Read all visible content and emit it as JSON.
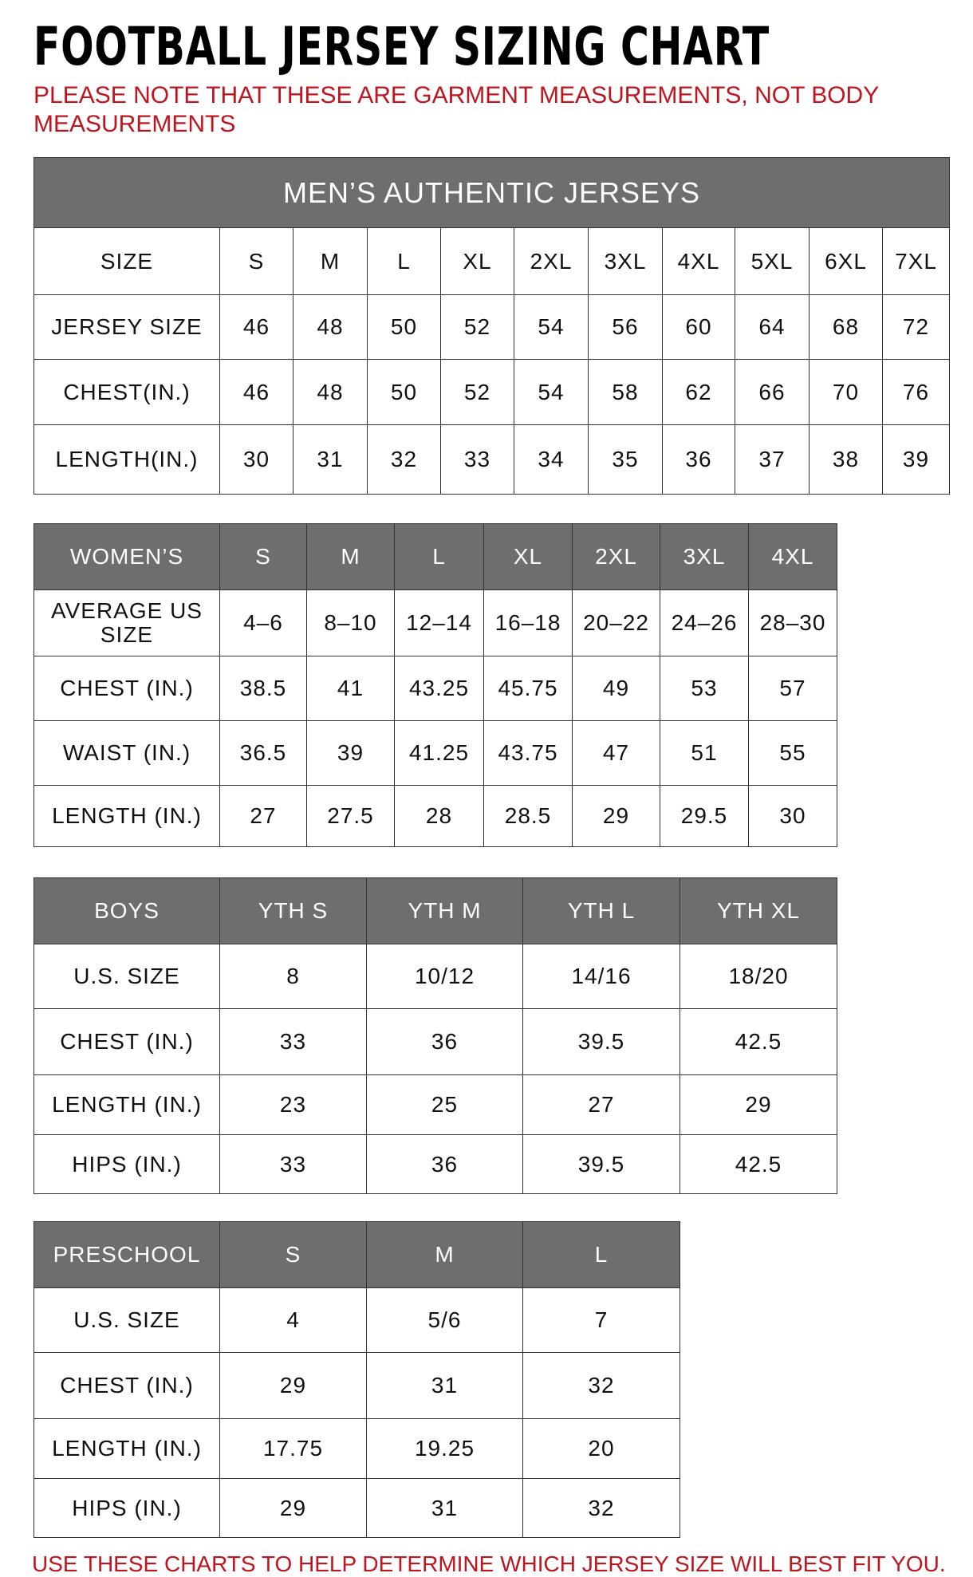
{
  "title": "FOOTBALL JERSEY SIZING CHART",
  "note": "PLEASE NOTE THAT THESE ARE GARMENT MEASUREMENTS, NOT BODY MEASUREMENTS",
  "footer": "USE THESE CHARTS TO HELP DETERMINE WHICH JERSEY SIZE WILL BEST FIT YOU.",
  "colors": {
    "header_bg": "#6e6e6e",
    "accent_red": "#c0141e"
  },
  "tables": [
    {
      "banner": "MEN’S AUTHENTIC JERSEYS",
      "header": [
        "SIZE",
        "S",
        "M",
        "L",
        "XL",
        "2XL",
        "3XL",
        "4XL",
        "5XL",
        "6XL",
        "7XL"
      ],
      "header_shaded": false,
      "rows": [
        [
          "JERSEY SIZE",
          "46",
          "48",
          "50",
          "52",
          "54",
          "56",
          "60",
          "64",
          "68",
          "72"
        ],
        [
          "CHEST(IN.)",
          "46",
          "48",
          "50",
          "52",
          "54",
          "58",
          "62",
          "66",
          "70",
          "76"
        ],
        [
          "LENGTH(IN.)",
          "30",
          "31",
          "32",
          "33",
          "34",
          "35",
          "36",
          "37",
          "38",
          "39"
        ]
      ]
    },
    {
      "header": [
        "WOMEN’S",
        "S",
        "M",
        "L",
        "XL",
        "2XL",
        "3XL",
        "4XL"
      ],
      "header_shaded": true,
      "rows": [
        [
          "AVERAGE US SIZE",
          "4–6",
          "8–10",
          "12–14",
          "16–18",
          "20–22",
          "24–26",
          "28–30"
        ],
        [
          "CHEST (IN.)",
          "38.5",
          "41",
          "43.25",
          "45.75",
          "49",
          "53",
          "57"
        ],
        [
          "WAIST (IN.)",
          "36.5",
          "39",
          "41.25",
          "43.75",
          "47",
          "51",
          "55"
        ],
        [
          "LENGTH (IN.)",
          "27",
          "27.5",
          "28",
          "28.5",
          "29",
          "29.5",
          "30"
        ]
      ]
    },
    {
      "header": [
        "BOYS",
        "YTH S",
        "YTH M",
        "YTH L",
        "YTH XL"
      ],
      "header_shaded": true,
      "rows": [
        [
          "U.S. SIZE",
          "8",
          "10/12",
          "14/16",
          "18/20"
        ],
        [
          "CHEST (IN.)",
          "33",
          "36",
          "39.5",
          "42.5"
        ],
        [
          "LENGTH (IN.)",
          "23",
          "25",
          "27",
          "29"
        ],
        [
          "HIPS (IN.)",
          "33",
          "36",
          "39.5",
          "42.5"
        ]
      ]
    },
    {
      "header": [
        "PRESCHOOL",
        "S",
        "M",
        "L"
      ],
      "header_shaded": true,
      "rows": [
        [
          "U.S. SIZE",
          "4",
          "5/6",
          "7"
        ],
        [
          "CHEST (IN.)",
          "29",
          "31",
          "32"
        ],
        [
          "LENGTH (IN.)",
          "17.75",
          "19.25",
          "20"
        ],
        [
          "HIPS (IN.)",
          "29",
          "31",
          "32"
        ]
      ]
    }
  ]
}
